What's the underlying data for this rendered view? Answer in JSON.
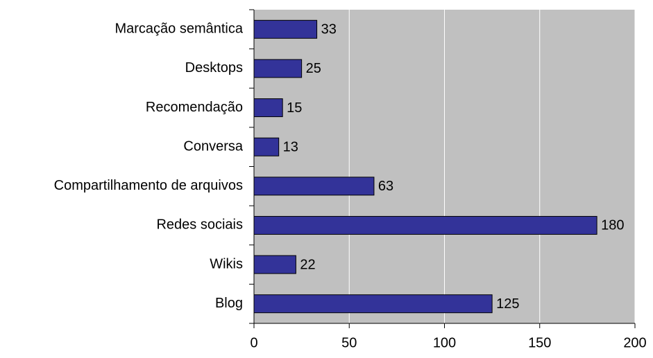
{
  "chart_data": {
    "type": "bar",
    "orientation": "horizontal",
    "categories": [
      "Marcação semântica",
      "Desktops",
      "Recomendação",
      "Conversa",
      "Compartilhamento de arquivos",
      "Redes sociais",
      "Wikis",
      "Blog"
    ],
    "values": [
      33,
      25,
      15,
      13,
      63,
      180,
      22,
      125
    ],
    "color": "#333399",
    "background": "#c0c0c0",
    "xlim": [
      0,
      200
    ],
    "xticks": [
      0,
      50,
      100,
      150,
      200
    ],
    "grid": true
  }
}
